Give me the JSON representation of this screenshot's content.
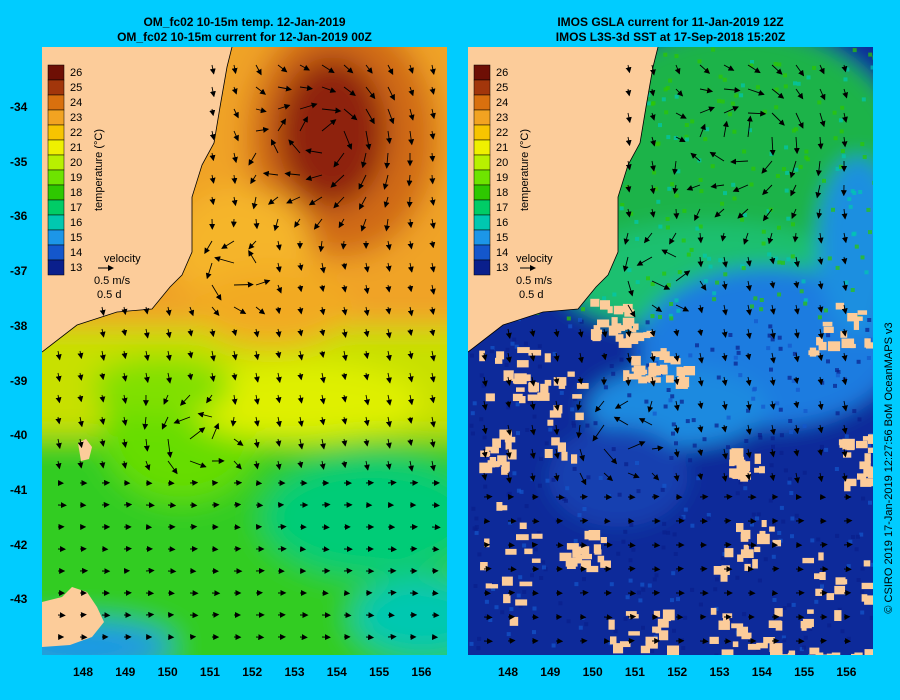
{
  "left_panel": {
    "title_line1": "OM_fc02 10-15m temp. 12-Jan-2019",
    "title_line2": "OM_fc02 10-15m current for 12-Jan-2019 00Z"
  },
  "right_panel": {
    "title_line1": "IMOS GSLA current for 11-Jan-2019 12Z",
    "title_line2": "IMOS L3S-3d SST at 17-Sep-2018 15:20Z"
  },
  "axes": {
    "lat_labels": [
      "-34",
      "-35",
      "-36",
      "-37",
      "-38",
      "-39",
      "-40",
      "-41",
      "-42",
      "-43"
    ],
    "lon_labels": [
      "148",
      "149",
      "150",
      "151",
      "152",
      "153",
      "154",
      "155",
      "156"
    ]
  },
  "colorbar": {
    "labels": [
      "26",
      "25",
      "24",
      "23",
      "22",
      "21",
      "20",
      "19",
      "18",
      "17",
      "16",
      "15",
      "14",
      "13"
    ],
    "title": "temperature (°C)",
    "colors": [
      "#6e0f05",
      "#a2360b",
      "#d9700e",
      "#f2a321",
      "#f7c400",
      "#eff000",
      "#b8f000",
      "#6ee400",
      "#2ec800",
      "#00cc66",
      "#00c8b0",
      "#1c96e8",
      "#1457cc",
      "#0a1f8c"
    ]
  },
  "velocity_legend": {
    "label": "velocity",
    "speed": "0.5 m/s",
    "duration": "0.5 d"
  },
  "credit": "© CSIRO 2019   17-Jan-2019 12:27:56 BoM OceanMAPS v3",
  "colors": {
    "background": "#00ccff",
    "land": "#fccc9a",
    "cloud_mask": "#fccc9a"
  }
}
